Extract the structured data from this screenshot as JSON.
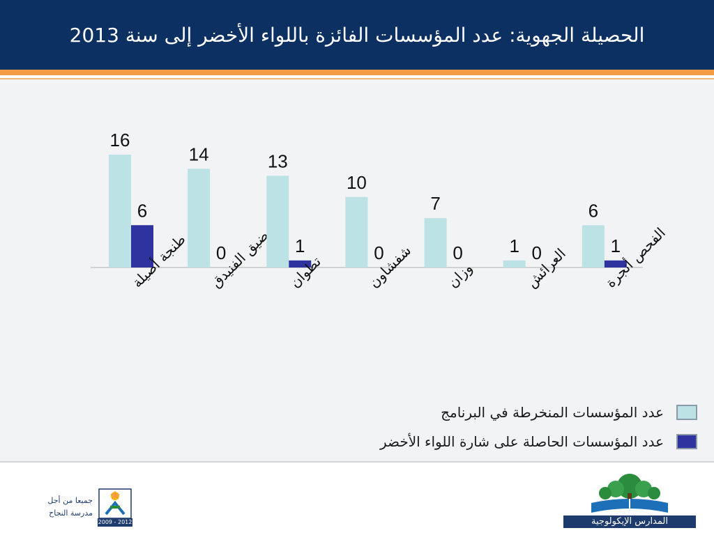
{
  "header": {
    "title": "الحصيلة الجهوية: عدد المؤسسات الفائزة باللواء الأخضر إلى سنة 2013"
  },
  "colors": {
    "header_bg": "#0d3063",
    "accent_orange": "#f39c45",
    "series_enrolled": "#bde2e6",
    "series_green_flag": "#2e33a0"
  },
  "chart_data": {
    "type": "bar",
    "categories": [
      "طنجة أصيلة",
      "المضيق الفنيدق",
      "تطوان",
      "شفشاون",
      "وزان",
      "العرائش",
      "الفحص أنجرة"
    ],
    "series": [
      {
        "name": "عدد المؤسسات المنخرطة في البرنامج",
        "values": [
          16,
          14,
          13,
          10,
          7,
          1,
          6
        ]
      },
      {
        "name": "عدد المؤسسات الحاصلة على شارة اللواء الأخضر",
        "values": [
          6,
          0,
          1,
          0,
          0,
          0,
          1
        ]
      }
    ],
    "ylim": [
      0,
      16
    ],
    "grid": false,
    "data_labels": true,
    "legend_position": "bottom-right"
  },
  "footer": {
    "left_text_line1": "جميعا من أجل",
    "left_text_line2": "مدرسة النجاح",
    "left_years": "2009 - 2012",
    "right_caption": "المدارس الإيكولوجية",
    "left_logo_icon": "star-person-logo-icon",
    "right_logo_icon": "tree-book-logo-icon"
  }
}
